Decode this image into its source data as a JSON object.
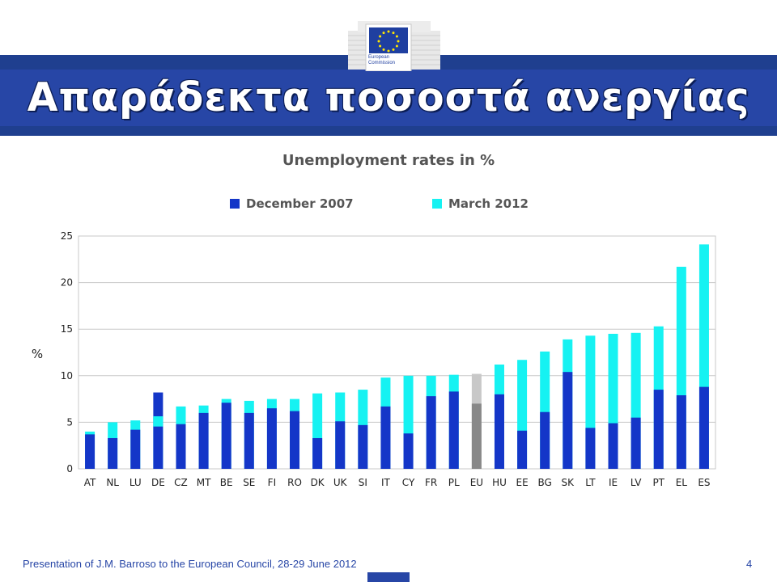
{
  "slide": {
    "title": "Απαράδεκτα ποσοστά ανεργίας",
    "footer": "Presentation of J.M. Barroso to the European Council, 28-29 June 2012",
    "page_number": "4",
    "logo_text": "European Commission"
  },
  "colors": {
    "accent": "#2746a6",
    "band": "#1f3f8f",
    "dec2007": "#1436c8",
    "mar2012": "#16f2f2",
    "eu_dec2007": "#888888",
    "eu_mar2012": "#c8c8c8"
  },
  "chart_data": {
    "type": "bar",
    "title": "Unemployment rates in %",
    "ylabel": "%",
    "ylim": [
      0,
      25
    ],
    "yticks": [
      0,
      5,
      10,
      15,
      20,
      25
    ],
    "grid": true,
    "legend_position": "top",
    "categories": [
      "AT",
      "NL",
      "LU",
      "DE",
      "CZ",
      "MT",
      "BE",
      "SE",
      "FI",
      "RO",
      "DK",
      "UK",
      "SI",
      "IT",
      "CY",
      "FR",
      "PL",
      "EU",
      "HU",
      "EE",
      "BG",
      "SK",
      "LT",
      "IE",
      "LV",
      "PT",
      "EL",
      "ES"
    ],
    "series": [
      {
        "name": "December 2007",
        "values": [
          3.7,
          3.3,
          4.2,
          8.2,
          4.8,
          6.0,
          7.1,
          6.0,
          6.5,
          6.2,
          3.3,
          5.1,
          4.7,
          6.7,
          3.8,
          7.8,
          8.3,
          7.0,
          8.0,
          4.1,
          6.1,
          10.4,
          4.4,
          4.9,
          5.5,
          8.5,
          7.9,
          8.8
        ]
      },
      {
        "name": "March 2012",
        "values": [
          4.0,
          5.0,
          5.2,
          5.6,
          6.7,
          6.8,
          7.5,
          7.3,
          7.5,
          7.5,
          8.1,
          8.2,
          8.5,
          9.8,
          10.0,
          10.0,
          10.1,
          10.2,
          11.2,
          11.7,
          12.6,
          13.9,
          14.3,
          14.5,
          14.6,
          15.3,
          21.7,
          24.1
        ]
      }
    ]
  }
}
